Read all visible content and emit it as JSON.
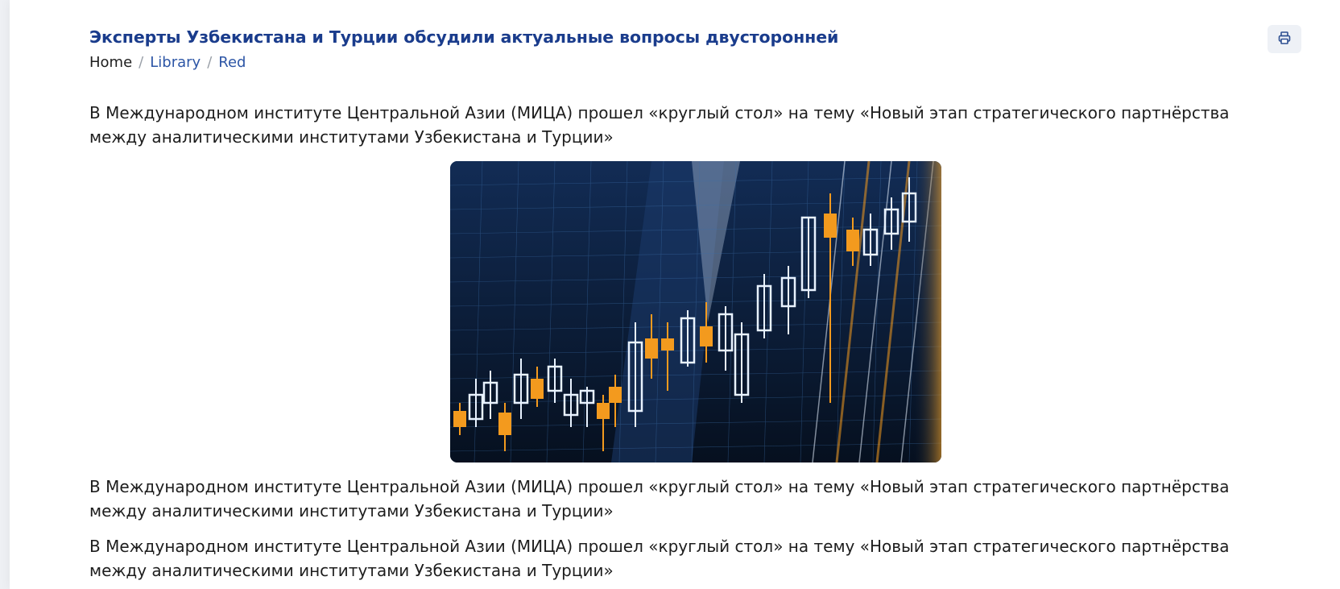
{
  "article": {
    "title": "Эксперты Узбекистана и Турции обсудили актуальные вопросы двусторонней",
    "breadcrumb": {
      "home": "Home",
      "library": "Library",
      "current": "Red",
      "separator": "/"
    },
    "paragraphs": [
      "В Международном институте Центральной Азии (МИЦА) прошел «круглый стол» на тему «Новый этап стратегического партнёрства между аналитическими институтами Узбекистана и Турции»",
      "В Международном институте Центральной Азии (МИЦА) прошел «круглый стол» на тему «Новый этап стратегического партнёрства между аналитическими институтами Узбекистана и Турции»",
      "В Международном институте Центральной Азии (МИЦА) прошел «круглый стол» на тему «Новый этап стратегического партнёрства между аналитическими институтами Узбекистана и Турции»"
    ],
    "image": {
      "subject": "candlestick-chart-photo"
    }
  },
  "toolbar": {
    "print_icon": "printer-icon"
  },
  "colors": {
    "title": "#1a3c8c",
    "link": "#2d56a6",
    "candle_orange": "#f39a1e",
    "candle_white": "#e8f2ff"
  }
}
